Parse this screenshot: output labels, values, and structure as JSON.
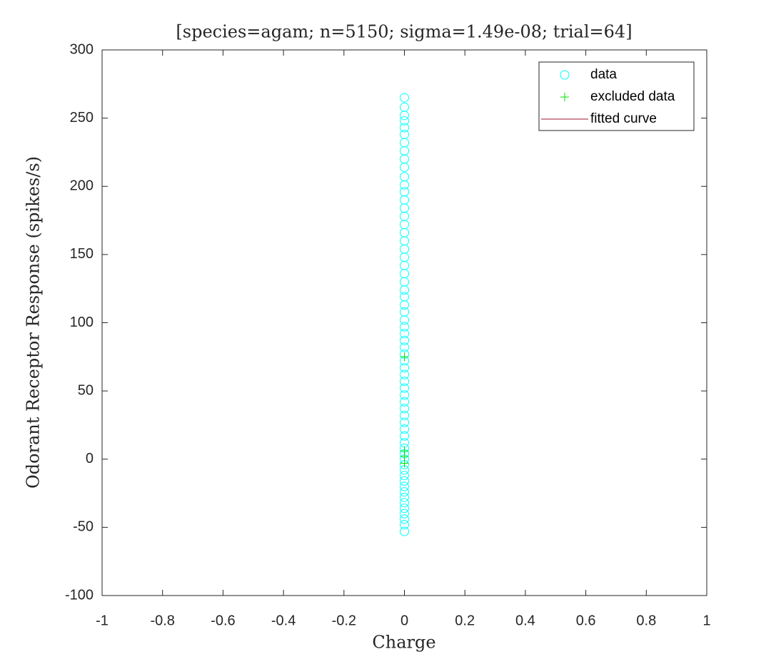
{
  "chart_data": {
    "type": "scatter",
    "title": "[species=agam; n=5150; sigma=1.49e-08; trial=64]",
    "xlabel": "Charge",
    "ylabel": "Odorant Receptor Response (spikes/s)",
    "xlim": [
      -1,
      1
    ],
    "xticks": [
      -1,
      -0.8,
      -0.6,
      -0.4,
      -0.2,
      0,
      0.2,
      0.4,
      0.6,
      0.8,
      1
    ],
    "ylim": [
      -100,
      300
    ],
    "yticks": [
      -100,
      -50,
      0,
      50,
      100,
      150,
      200,
      250,
      300
    ],
    "legend": "northeast",
    "grid": false,
    "series": [
      {
        "name": "data",
        "color": "#00ffff",
        "marker": "circle",
        "x": [
          0,
          0,
          0,
          0,
          0,
          0,
          0,
          0,
          0,
          0,
          0,
          0,
          0,
          0,
          0,
          0,
          0,
          0,
          0,
          0,
          0,
          0,
          0,
          0,
          0,
          0,
          0,
          0,
          0,
          0,
          0,
          0,
          0,
          0,
          0,
          0,
          0,
          0,
          0,
          0,
          0,
          0,
          0,
          0,
          0,
          0,
          0,
          0,
          0,
          0,
          0,
          0,
          0,
          0,
          0,
          0,
          0,
          0,
          0,
          0,
          0,
          0,
          0
        ],
        "values": [
          265,
          258,
          252,
          248,
          243,
          238,
          232,
          226,
          220,
          214,
          207,
          201,
          196,
          190,
          184,
          178,
          172,
          166,
          160,
          154,
          148,
          142,
          136,
          130,
          124,
          119,
          113,
          108,
          102,
          97,
          92,
          87,
          82,
          77,
          72,
          67,
          62,
          57,
          52,
          47,
          42,
          37,
          32,
          27,
          22,
          17,
          12,
          8,
          4,
          0,
          -4,
          -8,
          -12,
          -16,
          -20,
          -24,
          -28,
          -32,
          -36,
          -40,
          -44,
          -48,
          -53
        ]
      },
      {
        "name": "excluded data",
        "color": "#00e000",
        "marker": "plus",
        "x": [
          0,
          0,
          0,
          0
        ],
        "values": [
          75,
          6,
          2,
          -3
        ]
      },
      {
        "name": "fitted curve",
        "color": "#a2142f",
        "marker": "line"
      }
    ]
  }
}
